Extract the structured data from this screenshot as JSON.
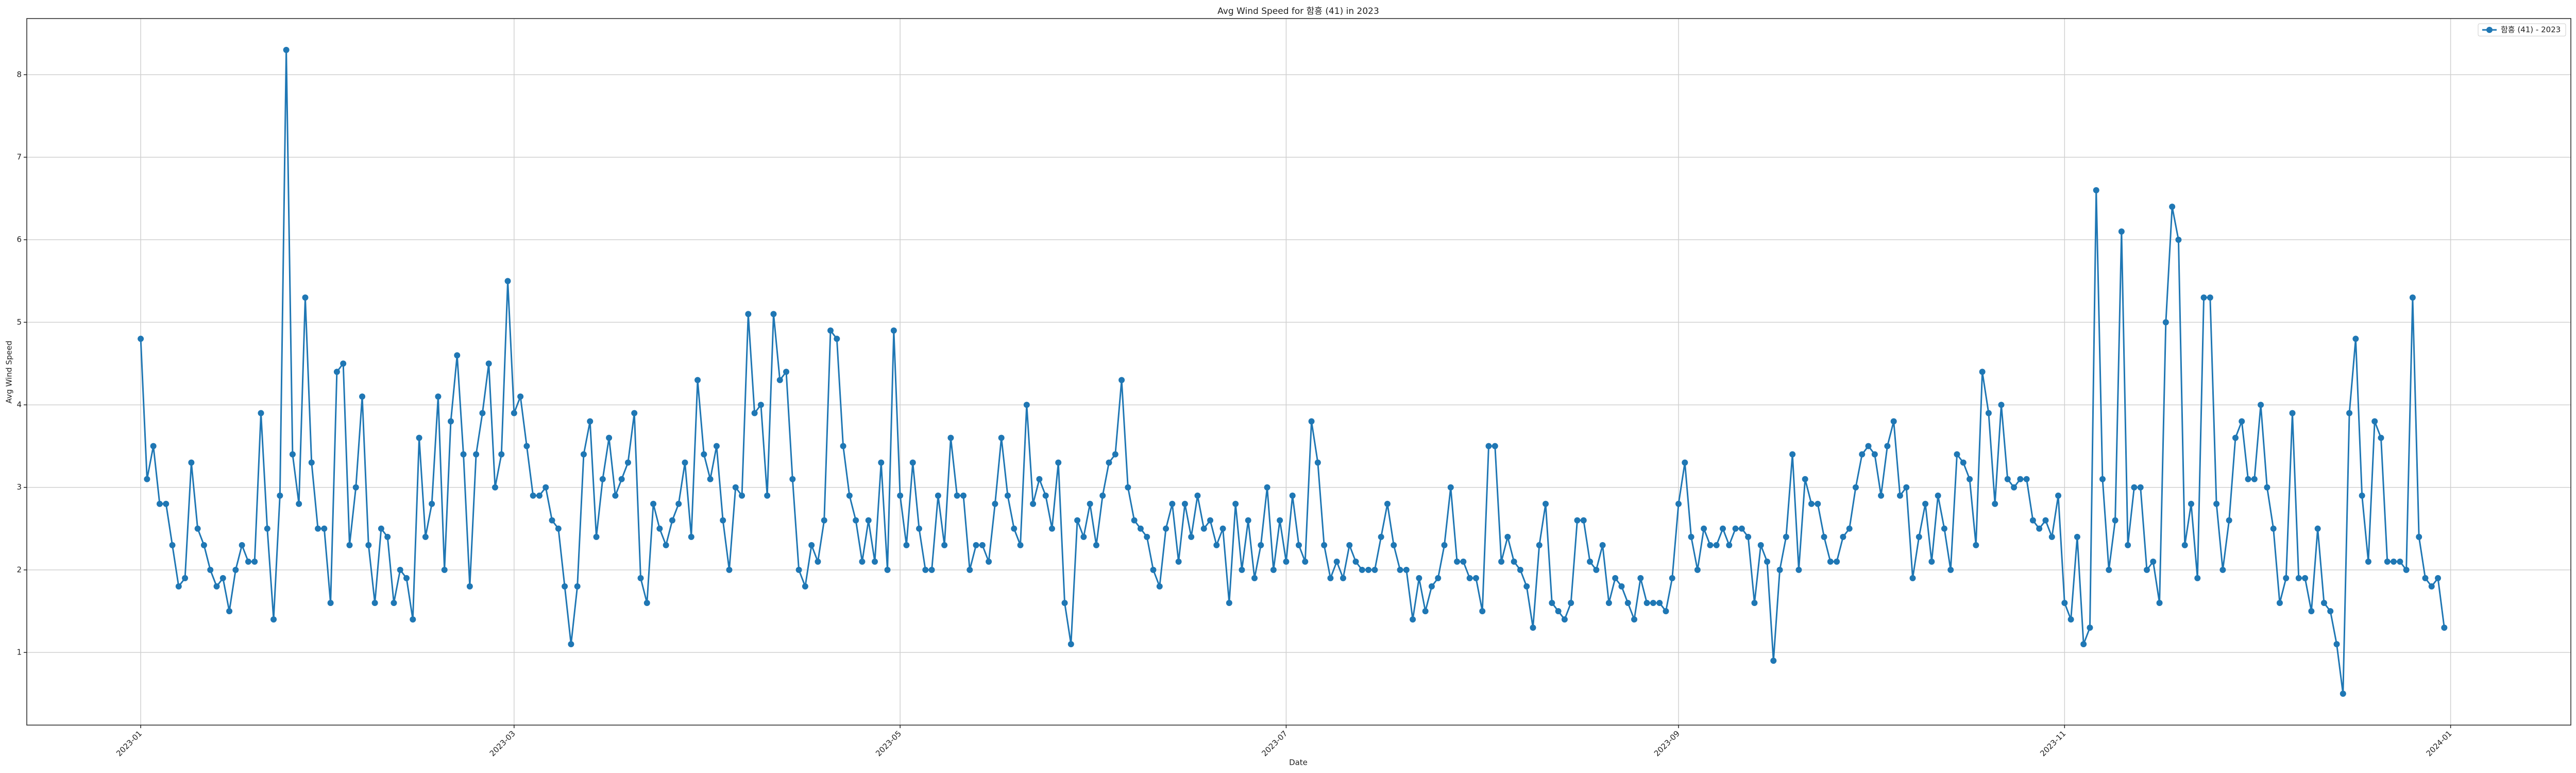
{
  "chart_data": {
    "type": "line",
    "title": "Avg Wind Speed for 함흥 (41) in 2023",
    "x_label": "Date",
    "y_label": "Avg Wind Speed",
    "xlim": [
      -18,
      384
    ],
    "xticks": [
      {
        "value": 0,
        "label": "2023-01"
      },
      {
        "value": 59,
        "label": "2023-03"
      },
      {
        "value": 120,
        "label": "2023-05"
      },
      {
        "value": 181,
        "label": "2023-07"
      },
      {
        "value": 243,
        "label": "2023-09"
      },
      {
        "value": 304,
        "label": "2023-11"
      },
      {
        "value": 365,
        "label": "2024-01"
      }
    ],
    "ylim": [
      0.12,
      8.68
    ],
    "yticks": [
      1,
      2,
      3,
      4,
      5,
      6,
      7,
      8
    ],
    "grid": true,
    "legend": "upper right",
    "series": [
      {
        "name": "함흥 (41) - 2023",
        "color": "#1f77b4",
        "values": [
          4.8,
          3.1,
          3.5,
          2.8,
          2.8,
          2.3,
          1.8,
          1.9,
          3.3,
          2.5,
          2.3,
          2.0,
          1.8,
          1.9,
          1.5,
          2.0,
          2.3,
          2.1,
          2.1,
          3.9,
          2.5,
          1.4,
          2.9,
          8.3,
          3.4,
          2.8,
          5.3,
          3.3,
          2.5,
          2.5,
          1.6,
          4.4,
          4.5,
          2.3,
          3.0,
          4.1,
          2.3,
          1.6,
          2.5,
          2.4,
          1.6,
          2.0,
          1.9,
          1.4,
          3.6,
          2.4,
          2.8,
          4.1,
          2.0,
          3.8,
          4.6,
          3.4,
          1.8,
          3.4,
          3.9,
          4.5,
          3.0,
          3.4,
          5.5,
          3.9,
          4.1,
          3.5,
          2.9,
          2.9,
          3.0,
          2.6,
          2.5,
          1.8,
          1.1,
          1.8,
          3.4,
          3.8,
          2.4,
          3.1,
          3.6,
          2.9,
          3.1,
          3.3,
          3.9,
          1.9,
          1.6,
          2.8,
          2.5,
          2.3,
          2.6,
          2.8,
          3.3,
          2.4,
          4.3,
          3.4,
          3.1,
          3.5,
          2.6,
          2.0,
          3.0,
          2.9,
          5.1,
          3.9,
          4.0,
          2.9,
          5.1,
          4.3,
          4.4,
          3.1,
          2.0,
          1.8,
          2.3,
          2.1,
          2.6,
          4.9,
          4.8,
          3.5,
          2.9,
          2.6,
          2.1,
          2.6,
          2.1,
          3.3,
          2.0,
          4.9,
          2.9,
          2.3,
          3.3,
          2.5,
          2.0,
          2.0,
          2.9,
          2.3,
          3.6,
          2.9,
          2.9,
          2.0,
          2.3,
          2.3,
          2.1,
          2.8,
          3.6,
          2.9,
          2.5,
          2.3,
          4.0,
          2.8,
          3.1,
          2.9,
          2.5,
          3.3,
          1.6,
          1.1,
          2.6,
          2.4,
          2.8,
          2.3,
          2.9,
          3.3,
          3.4,
          4.3,
          3.0,
          2.6,
          2.5,
          2.4,
          2.0,
          1.8,
          2.5,
          2.8,
          2.1,
          2.8,
          2.4,
          2.9,
          2.5,
          2.6,
          2.3,
          2.5,
          1.6,
          2.8,
          2.0,
          2.6,
          1.9,
          2.3,
          3.0,
          2.0,
          2.6,
          2.1,
          2.9,
          2.3,
          2.1,
          3.8,
          3.3,
          2.3,
          1.9,
          2.1,
          1.9,
          2.3,
          2.1,
          2.0,
          2.0,
          2.0,
          2.4,
          2.8,
          2.3,
          2.0,
          2.0,
          1.4,
          1.9,
          1.5,
          1.8,
          1.9,
          2.3,
          3.0,
          2.1,
          2.1,
          1.9,
          1.9,
          1.5,
          3.5,
          3.5,
          2.1,
          2.4,
          2.1,
          2.0,
          1.8,
          1.3,
          2.3,
          2.8,
          1.6,
          1.5,
          1.4,
          1.6,
          2.6,
          2.6,
          2.1,
          2.0,
          2.3,
          1.6,
          1.9,
          1.8,
          1.6,
          1.4,
          1.9,
          1.6,
          1.6,
          1.6,
          1.5,
          1.9,
          2.8,
          3.3,
          2.4,
          2.0,
          2.5,
          2.3,
          2.3,
          2.5,
          2.3,
          2.5,
          2.5,
          2.4,
          1.6,
          2.3,
          2.1,
          0.9,
          2.0,
          2.4,
          3.4,
          2.0,
          3.1,
          2.8,
          2.8,
          2.4,
          2.1,
          2.1,
          2.4,
          2.5,
          3.0,
          3.4,
          3.5,
          3.4,
          2.9,
          3.5,
          3.8,
          2.9,
          3.0,
          1.9,
          2.4,
          2.8,
          2.1,
          2.9,
          2.5,
          2.0,
          3.4,
          3.3,
          3.1,
          2.3,
          4.4,
          3.9,
          2.8,
          4.0,
          3.1,
          3.0,
          3.1,
          3.1,
          2.6,
          2.5,
          2.6,
          2.4,
          2.9,
          1.6,
          1.4,
          2.4,
          1.1,
          1.3,
          6.6,
          3.1,
          2.0,
          2.6,
          6.1,
          2.3,
          3.0,
          3.0,
          2.0,
          2.1,
          1.6,
          5.0,
          6.4,
          6.0,
          2.3,
          2.8,
          1.9,
          5.3,
          5.3,
          2.8,
          2.0,
          2.6,
          3.6,
          3.8,
          3.1,
          3.1,
          4.0,
          3.0,
          2.5,
          1.6,
          1.9,
          3.9,
          1.9,
          1.9,
          1.5,
          2.5,
          1.6,
          1.5,
          1.1,
          0.5,
          3.9,
          4.8,
          2.9,
          2.1,
          3.8,
          3.6,
          2.1,
          2.1,
          2.1,
          2.0,
          5.3,
          2.4,
          1.9,
          1.8,
          1.9,
          1.3
        ]
      }
    ]
  }
}
